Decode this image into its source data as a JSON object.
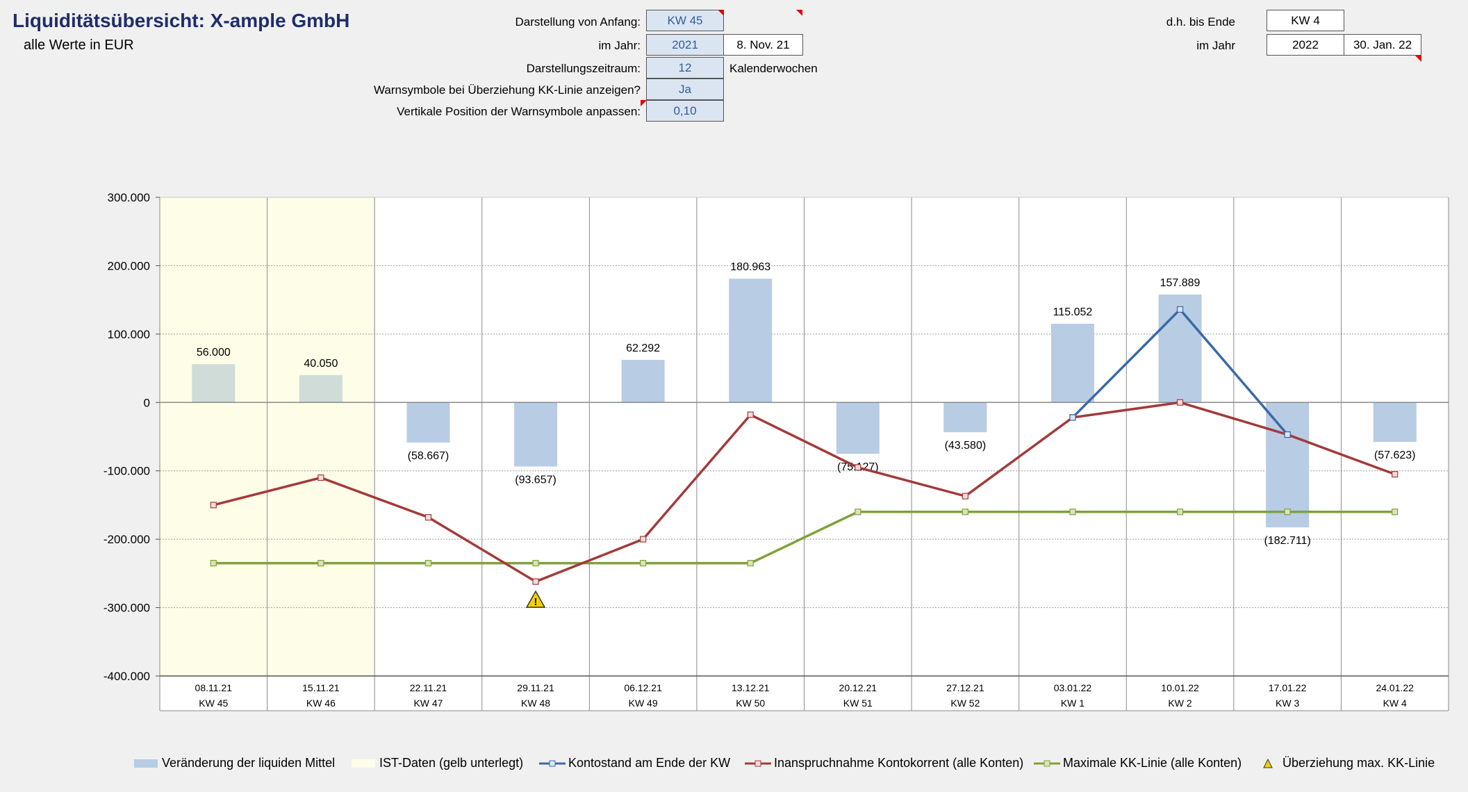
{
  "header": {
    "title": "Liquiditätsübersicht: X-ample GmbH",
    "subtitle": "alle Werte in EUR"
  },
  "settings": {
    "start_label": "Darstellung von Anfang:",
    "start_kw": "KW 45",
    "year_label": "im Jahr:",
    "year": "2021",
    "start_date": "8. Nov. 21",
    "period_label": "Darstellungszeitraum:",
    "period": "12",
    "period_unit": "Kalenderwochen",
    "warn_label": "Warnsymbole bei Überziehung KK-Linie anzeigen?",
    "warn": "Ja",
    "warnpos_label": "Vertikale Position der Warnsymbole anpassen:",
    "warnpos": "0,10",
    "end_label": "d.h. bis Ende",
    "end_kw": "KW 4",
    "end_year_label": "im Jahr",
    "end_year": "2022",
    "end_date": "30. Jan. 22"
  },
  "chart_data": {
    "type": "bar",
    "dates": [
      "08.11.21",
      "15.11.21",
      "22.11.21",
      "29.11.21",
      "06.12.21",
      "13.12.21",
      "20.12.21",
      "27.12.21",
      "03.01.22",
      "10.01.22",
      "17.01.22",
      "24.01.22"
    ],
    "weeks": [
      "KW 45",
      "KW 46",
      "KW 47",
      "KW 48",
      "KW 49",
      "KW 50",
      "KW 51",
      "KW 52",
      "KW 1",
      "KW 2",
      "KW 3",
      "KW 4"
    ],
    "ylim": [
      -400000,
      300000
    ],
    "yticks": [
      "-400.000",
      "-300.000",
      "-200.000",
      "-100.000",
      "0",
      "100.000",
      "200.000",
      "300.000"
    ],
    "ist_weeks": 2,
    "series": [
      {
        "name": "Veränderung der liquiden Mittel",
        "kind": "bar",
        "color": "#b8cce4",
        "values": [
          56000,
          40050,
          -58667,
          -93657,
          62292,
          180963,
          -75127,
          -43580,
          115052,
          157889,
          -182711,
          -57623
        ],
        "labels": [
          "56.000",
          "40.050",
          "(58.667)",
          "(93.657)",
          "62.292",
          "180.963",
          "(75.127)",
          "(43.580)",
          "115.052",
          "157.889",
          "(182.711)",
          "(57.623)"
        ]
      },
      {
        "name": "Kontostand am Ende der KW",
        "kind": "line",
        "color": "#3a6aa6",
        "values": [
          null,
          null,
          null,
          null,
          null,
          null,
          null,
          null,
          -22000,
          136000,
          -47000,
          null
        ]
      },
      {
        "name": "Inanspruchnahme Kontokorrent (alle Konten)",
        "kind": "line",
        "color": "#a33a3a",
        "values": [
          -150000,
          -110000,
          -168000,
          -262000,
          -200000,
          -18000,
          -95000,
          -137000,
          -22000,
          0,
          -47000,
          -105000
        ]
      },
      {
        "name": "Maximale KK-Linie (alle Konten)",
        "kind": "line",
        "color": "#7fa23a",
        "values": [
          -235000,
          -235000,
          -235000,
          -235000,
          -235000,
          -235000,
          -160000,
          -160000,
          -160000,
          -160000,
          -160000,
          -160000
        ]
      }
    ],
    "warnings": [
      3
    ],
    "legend": {
      "bars": "Veränderung der liquiden Mittel",
      "ist": "IST-Daten (gelb unterlegt)",
      "konto": "Kontostand am Ende der KW",
      "kk": "Inanspruchnahme Kontokorrent (alle Konten)",
      "max": "Maximale KK-Linie (alle Konten)",
      "warn": "Überziehung max. KK-Linie"
    },
    "colors": {
      "ist_bg": "#fdfde8",
      "ist_bar": "#d0dcd8",
      "warn_fill": "#f5d000"
    }
  }
}
